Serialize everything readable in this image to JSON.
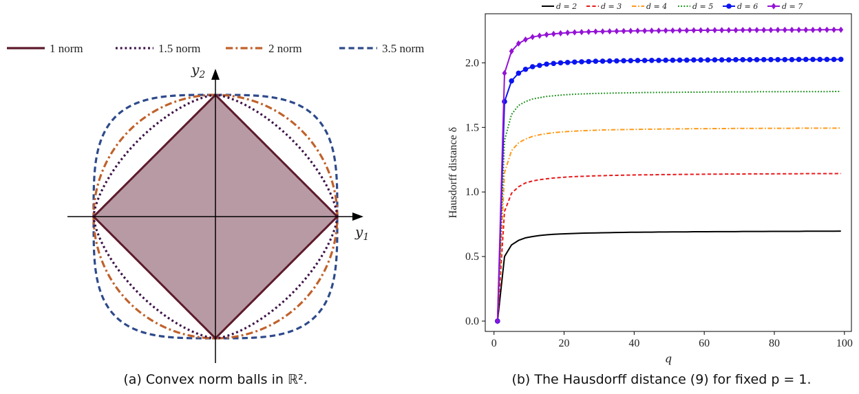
{
  "chart_data": [
    {
      "type": "line",
      "caption": "(a) Convex norm balls in ℝ².",
      "xlabel": "y1",
      "ylabel": "y2",
      "legend_position": "top",
      "series": [
        {
          "name": "1 norm",
          "p": 1,
          "color": "#5c1a2c",
          "dash": "solid"
        },
        {
          "name": "1.5 norm",
          "p": 1.5,
          "color": "#3d1448",
          "dash": "dotted"
        },
        {
          "name": "2 norm",
          "p": 2,
          "color": "#c0612b",
          "dash": "dashdot"
        },
        {
          "name": "3.5 norm",
          "p": 3.5,
          "color": "#2e4a8b",
          "dash": "dashed"
        }
      ],
      "fill_color": "#b89aa4"
    },
    {
      "type": "line",
      "caption": "(b) The Hausdorff distance (9) for fixed p = 1.",
      "xlabel": "q",
      "ylabel": "Hausdorff distance δ",
      "xlim": [
        -2.5,
        102
      ],
      "ylim": [
        -0.08,
        2.38
      ],
      "xticks": [
        0,
        20,
        40,
        60,
        80,
        100
      ],
      "yticks": [
        0.0,
        0.5,
        1.0,
        1.5,
        2.0
      ],
      "xtick_labels": [
        "0",
        "20",
        "40",
        "60",
        "80",
        "100"
      ],
      "ytick_labels": [
        "0.0",
        "0.5",
        "1.0",
        "1.5",
        "2.0"
      ],
      "legend_position": "top",
      "x": [
        1,
        3,
        5,
        7,
        9,
        11,
        13,
        15,
        17,
        19,
        21,
        23,
        25,
        27,
        29,
        31,
        33,
        35,
        37,
        39,
        41,
        43,
        45,
        47,
        49,
        51,
        53,
        55,
        57,
        59,
        61,
        63,
        65,
        67,
        69,
        71,
        73,
        75,
        77,
        79,
        81,
        83,
        85,
        87,
        89,
        91,
        93,
        95,
        97,
        99
      ],
      "series": [
        {
          "name": "d = 2",
          "color": "#000000",
          "dash": "solid",
          "marker": "none",
          "values": [
            0.0,
            0.5,
            0.59,
            0.625,
            0.645,
            0.655,
            0.663,
            0.668,
            0.672,
            0.675,
            0.677,
            0.679,
            0.681,
            0.682,
            0.683,
            0.684,
            0.685,
            0.686,
            0.687,
            0.688,
            0.688,
            0.689,
            0.689,
            0.69,
            0.69,
            0.691,
            0.691,
            0.691,
            0.692,
            0.692,
            0.692,
            0.693,
            0.693,
            0.693,
            0.693,
            0.694,
            0.694,
            0.694,
            0.694,
            0.695,
            0.695,
            0.695,
            0.695,
            0.695,
            0.696,
            0.696,
            0.696,
            0.696,
            0.696,
            0.697
          ]
        },
        {
          "name": "d = 3",
          "color": "#e8191c",
          "dash": "dashed",
          "marker": "none",
          "values": [
            0.0,
            0.85,
            0.99,
            1.04,
            1.07,
            1.085,
            1.095,
            1.102,
            1.108,
            1.112,
            1.116,
            1.119,
            1.121,
            1.123,
            1.125,
            1.126,
            1.128,
            1.129,
            1.13,
            1.131,
            1.132,
            1.133,
            1.133,
            1.134,
            1.135,
            1.135,
            1.136,
            1.136,
            1.137,
            1.137,
            1.138,
            1.138,
            1.138,
            1.139,
            1.139,
            1.139,
            1.14,
            1.14,
            1.14,
            1.14,
            1.141,
            1.141,
            1.141,
            1.141,
            1.142,
            1.142,
            1.142,
            1.142,
            1.142,
            1.143
          ]
        },
        {
          "name": "d = 4",
          "color": "#ff9a1a",
          "dash": "dashdot",
          "marker": "none",
          "values": [
            0.0,
            1.15,
            1.32,
            1.38,
            1.41,
            1.43,
            1.443,
            1.452,
            1.459,
            1.464,
            1.468,
            1.471,
            1.474,
            1.476,
            1.478,
            1.48,
            1.481,
            1.482,
            1.483,
            1.484,
            1.485,
            1.486,
            1.486,
            1.487,
            1.488,
            1.488,
            1.489,
            1.489,
            1.49,
            1.49,
            1.49,
            1.491,
            1.491,
            1.491,
            1.492,
            1.492,
            1.492,
            1.492,
            1.493,
            1.493,
            1.493,
            1.493,
            1.493,
            1.494,
            1.494,
            1.494,
            1.494,
            1.494,
            1.494,
            1.495
          ]
        },
        {
          "name": "d = 5",
          "color": "#118c11",
          "dash": "dotted",
          "marker": "none",
          "values": [
            0.0,
            1.4,
            1.6,
            1.67,
            1.7,
            1.72,
            1.73,
            1.74,
            1.745,
            1.75,
            1.754,
            1.757,
            1.759,
            1.761,
            1.763,
            1.764,
            1.765,
            1.766,
            1.767,
            1.768,
            1.769,
            1.77,
            1.77,
            1.771,
            1.771,
            1.772,
            1.772,
            1.773,
            1.773,
            1.773,
            1.774,
            1.774,
            1.774,
            1.775,
            1.775,
            1.775,
            1.775,
            1.776,
            1.776,
            1.776,
            1.776,
            1.776,
            1.777,
            1.777,
            1.777,
            1.777,
            1.777,
            1.777,
            1.778,
            1.778
          ]
        },
        {
          "name": "d = 6",
          "color": "#0a14f0",
          "dash": "solid",
          "marker": "circle",
          "values": [
            0.0,
            1.7,
            1.86,
            1.92,
            1.95,
            1.97,
            1.98,
            1.99,
            1.995,
            2.0,
            2.003,
            2.006,
            2.008,
            2.01,
            2.012,
            2.013,
            2.014,
            2.015,
            2.016,
            2.017,
            2.018,
            2.018,
            2.019,
            2.019,
            2.02,
            2.02,
            2.021,
            2.021,
            2.022,
            2.022,
            2.022,
            2.023,
            2.023,
            2.023,
            2.024,
            2.024,
            2.024,
            2.024,
            2.025,
            2.025,
            2.025,
            2.025,
            2.025,
            2.026,
            2.026,
            2.026,
            2.026,
            2.026,
            2.026,
            2.027
          ]
        },
        {
          "name": "d = 7",
          "color": "#9412d6",
          "dash": "solid",
          "marker": "diamond",
          "values": [
            0.0,
            1.92,
            2.09,
            2.15,
            2.18,
            2.2,
            2.21,
            2.218,
            2.224,
            2.229,
            2.233,
            2.236,
            2.238,
            2.24,
            2.242,
            2.243,
            2.244,
            2.245,
            2.246,
            2.247,
            2.248,
            2.248,
            2.249,
            2.249,
            2.25,
            2.25,
            2.251,
            2.251,
            2.252,
            2.252,
            2.252,
            2.253,
            2.253,
            2.253,
            2.253,
            2.254,
            2.254,
            2.254,
            2.254,
            2.254,
            2.255,
            2.255,
            2.255,
            2.255,
            2.255,
            2.255,
            2.256,
            2.256,
            2.256,
            2.256
          ]
        }
      ]
    }
  ]
}
